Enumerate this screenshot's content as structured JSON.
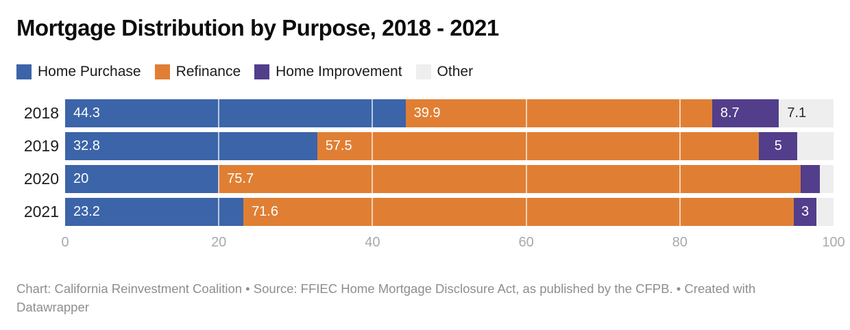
{
  "page": {
    "title": "Mortgage Distribution by Purpose, 2018 - 2021"
  },
  "chart_data": {
    "type": "bar",
    "variant": "horizontal-stacked",
    "title": "Mortgage Distribution by Purpose, 2018 - 2021",
    "categories": [
      "2018",
      "2019",
      "2020",
      "2021"
    ],
    "series": [
      {
        "name": "Home Purchase",
        "color": "#3c64a8",
        "values": [
          44.3,
          32.8,
          20,
          23.2
        ],
        "labels": [
          "44.3",
          "32.8",
          "20",
          "23.2"
        ],
        "label_color": "#ffffff"
      },
      {
        "name": "Refinance",
        "color": "#e07f34",
        "values": [
          39.9,
          57.5,
          75.7,
          71.6
        ],
        "labels": [
          "39.9",
          "57.5",
          "75.7",
          "71.6"
        ],
        "label_color": "#ffffff"
      },
      {
        "name": "Home Improvement",
        "color": "#523e8a",
        "values": [
          8.7,
          5,
          2.5,
          3
        ],
        "labels": [
          "8.7",
          "5",
          "",
          "3"
        ],
        "label_color": "#ffffff"
      },
      {
        "name": "Other",
        "color": "#eeeeee",
        "values": [
          7.1,
          4.7,
          1.8,
          2.2
        ],
        "labels": [
          "7.1",
          "",
          "",
          ""
        ],
        "label_color": "#2b2b2b"
      }
    ],
    "xlim": [
      0,
      100
    ],
    "x_ticks": [
      "0",
      "20",
      "40",
      "60",
      "80",
      "100"
    ],
    "gridlines_at": [
      20,
      40,
      60,
      80
    ],
    "grid": true,
    "legend_position": "top",
    "axis_label_color": "#a9a9a9"
  },
  "footer": {
    "text": "Chart: California Reinvestment Coalition • Source: FFIEC Home Mortgage Disclosure Act, as published by the CFPB. • Created with Datawrapper"
  }
}
